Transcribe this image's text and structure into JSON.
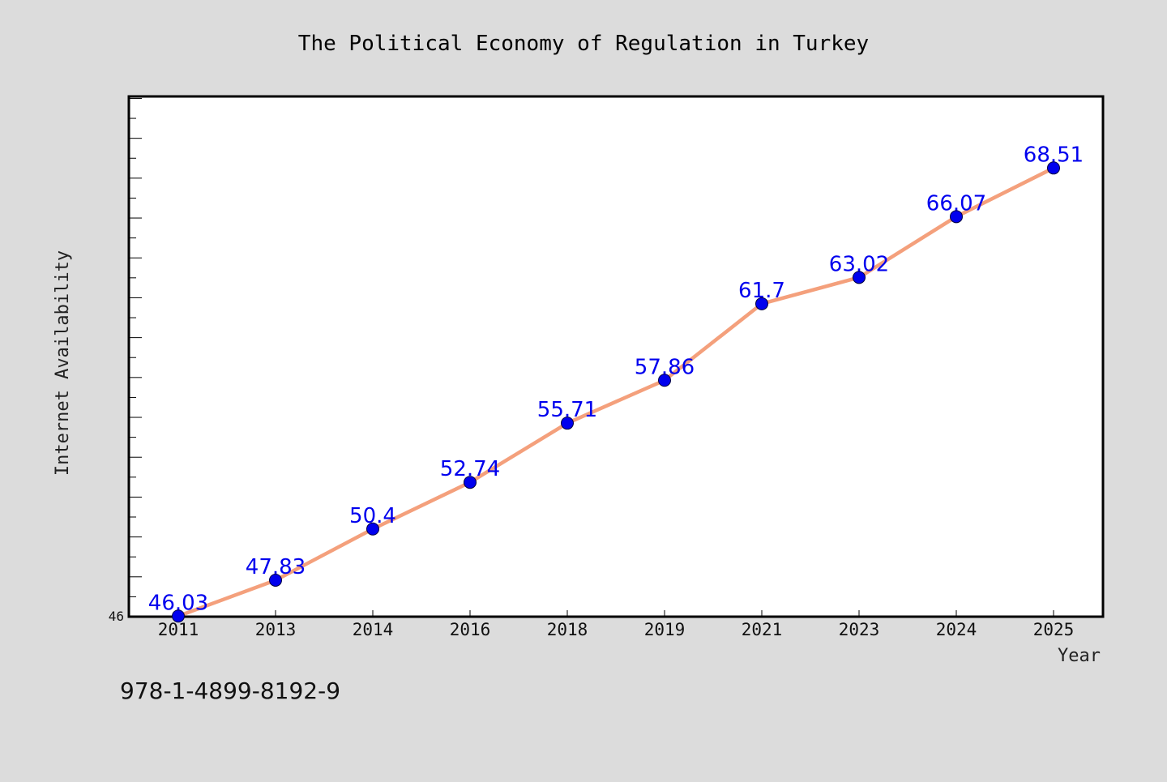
{
  "chart_data": {
    "type": "line",
    "title": "The Political Economy of Regulation in Turkey",
    "xlabel": "Year",
    "ylabel": "Internet Availability",
    "categories": [
      "2011",
      "2013",
      "2014",
      "2016",
      "2018",
      "2019",
      "2021",
      "2023",
      "2024",
      "2025"
    ],
    "series": [
      {
        "values": [
          46.03,
          47.83,
          50.4,
          52.74,
          55.71,
          57.86,
          61.7,
          63.02,
          66.07,
          68.51
        ],
        "data_labels": [
          "46.03",
          "47.83",
          "50.4",
          "52.74",
          "55.71",
          "57.86",
          "61.7",
          "63.02",
          "66.07",
          "68.51"
        ],
        "line_color": "#f4a07c",
        "marker_color": "#0000ee",
        "label_color": "#0000ee"
      }
    ],
    "ylim": [
      46,
      72.1
    ],
    "ytick_labels": [
      "46"
    ],
    "grid": false,
    "legend": "none",
    "colors": {
      "background": "#dcdcdc",
      "plot_background": "#ffffff",
      "frame": "#000000"
    }
  },
  "footer": {
    "isbn": "978-1-4899-8192-9"
  }
}
